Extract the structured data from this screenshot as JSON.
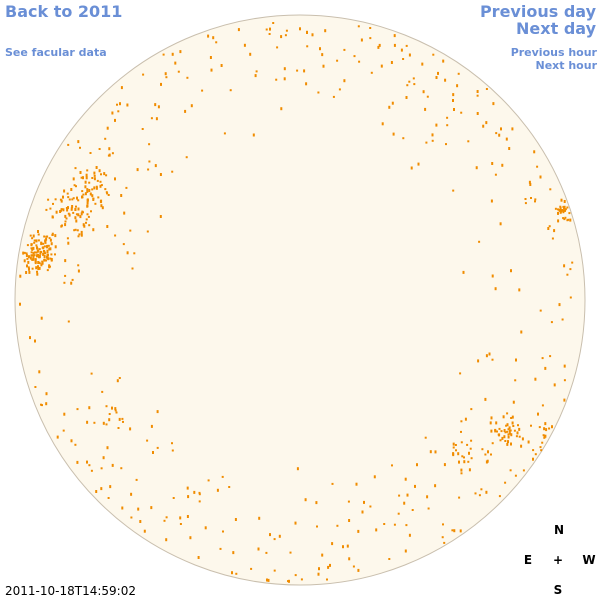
{
  "links": {
    "back": "Back to 2011",
    "facular": "See facular data",
    "previous_day": "Previous day",
    "next_day": "Next day",
    "previous_hour": "Previous hour",
    "next_hour": "Next hour"
  },
  "timestamp": "2011-10-18T14:59:02",
  "compass": {
    "north": "N",
    "east": "E",
    "center": "+",
    "west": "W",
    "south": "S"
  }
}
